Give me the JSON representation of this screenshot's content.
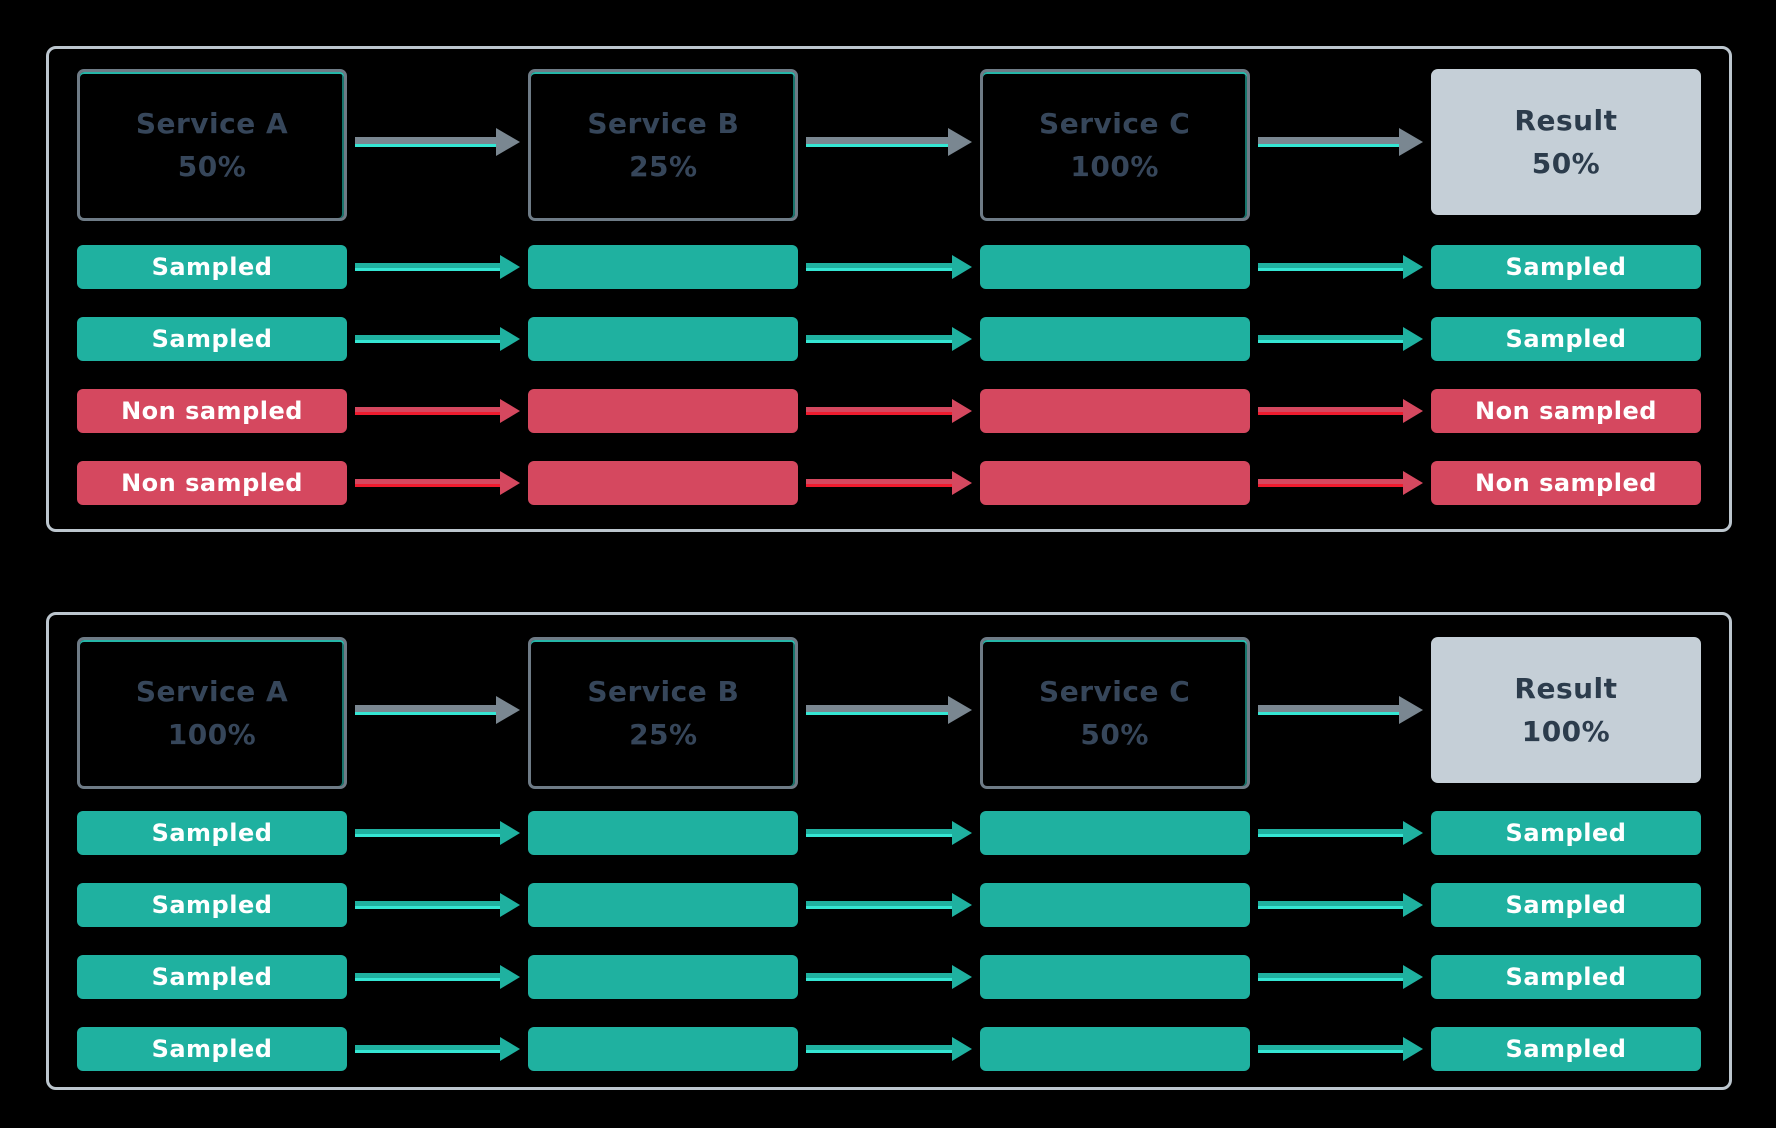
{
  "colors": {
    "background": "#000000",
    "panel_border": "#bcc6ce",
    "service_box_border": "#6e7b86",
    "service_box_accent": "#2cd5c4",
    "service_text": "#36465a",
    "result_box_fill": "#c5cfd7",
    "result_text": "#2c3c4c",
    "sampled_fill": "#1fb1a0",
    "sampled_highlight_line": "#35e6d3",
    "non_sampled_fill": "#d5485f",
    "non_sampled_highlight_line": "#ef1b2e",
    "header_arrow": "#7a8791",
    "bar_text": "#ffffff"
  },
  "panels": [
    {
      "header": [
        {
          "title": "Service A",
          "value": "50%",
          "kind": "service"
        },
        {
          "title": "Service B",
          "value": "25%",
          "kind": "service"
        },
        {
          "title": "Service C",
          "value": "100%",
          "kind": "service"
        },
        {
          "title": "Result",
          "value": "50%",
          "kind": "result"
        }
      ],
      "flows": [
        {
          "label": "Sampled",
          "state": "sampled"
        },
        {
          "label": "Sampled",
          "state": "sampled"
        },
        {
          "label": "Non sampled",
          "state": "non-sampled"
        },
        {
          "label": "Non sampled",
          "state": "non-sampled"
        }
      ]
    },
    {
      "header": [
        {
          "title": "Service A",
          "value": "100%",
          "kind": "service"
        },
        {
          "title": "Service B",
          "value": "25%",
          "kind": "service"
        },
        {
          "title": "Service C",
          "value": "50%",
          "kind": "service"
        },
        {
          "title": "Result",
          "value": "100%",
          "kind": "result"
        }
      ],
      "flows": [
        {
          "label": "Sampled",
          "state": "sampled"
        },
        {
          "label": "Sampled",
          "state": "sampled"
        },
        {
          "label": "Sampled",
          "state": "sampled"
        },
        {
          "label": "Sampled",
          "state": "sampled"
        }
      ]
    }
  ]
}
